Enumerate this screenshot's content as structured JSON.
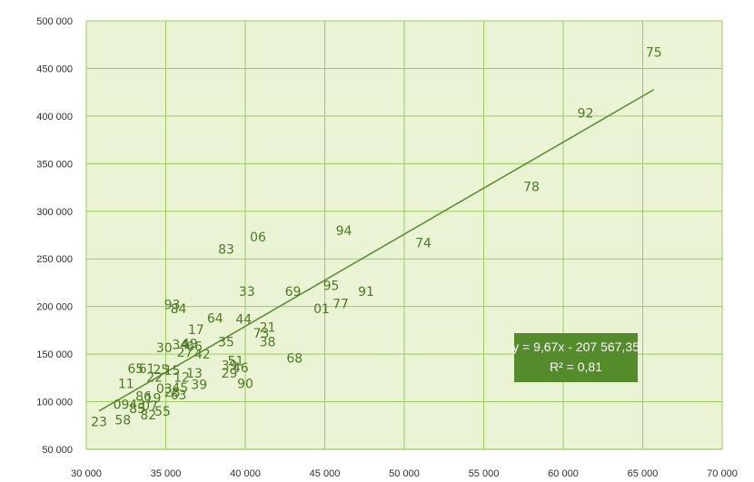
{
  "chart_data": {
    "type": "scatter",
    "title": "",
    "xlabel": "",
    "ylabel": "",
    "xlim": [
      30000,
      70000
    ],
    "ylim": [
      50000,
      500000
    ],
    "x_tick_values": [
      30000,
      35000,
      40000,
      45000,
      50000,
      55000,
      60000,
      65000,
      70000
    ],
    "y_tick_values": [
      50000,
      100000,
      150000,
      200000,
      250000,
      300000,
      350000,
      400000,
      450000,
      500000
    ],
    "x_tick_labels": [
      "30 000",
      "35 000",
      "40 000",
      "45 000",
      "50 000",
      "55 000",
      "60 000",
      "65 000",
      "70 000"
    ],
    "y_tick_labels": [
      "50 000",
      "100 000",
      "150 000",
      "200 000",
      "250 000",
      "300 000",
      "350 000",
      "400 000",
      "450 000",
      "500 000"
    ],
    "grid": true,
    "marker": "text-label",
    "colors": {
      "plot_background": "#eaf4d5",
      "grid": "#9ccc5a",
      "points": "#4d7a22",
      "trendline": "#548b2b",
      "annotation_box": "#548b2b"
    },
    "points": [
      {
        "label": "75",
        "x": 65700,
        "y": 467000
      },
      {
        "label": "92",
        "x": 61400,
        "y": 403000
      },
      {
        "label": "78",
        "x": 58000,
        "y": 326000
      },
      {
        "label": "74",
        "x": 51200,
        "y": 267000
      },
      {
        "label": "94",
        "x": 46200,
        "y": 280000
      },
      {
        "label": "06",
        "x": 40800,
        "y": 273000
      },
      {
        "label": "83",
        "x": 38800,
        "y": 260000
      },
      {
        "label": "95",
        "x": 45400,
        "y": 222000
      },
      {
        "label": "91",
        "x": 47600,
        "y": 216000
      },
      {
        "label": "77",
        "x": 46000,
        "y": 203000
      },
      {
        "label": "01",
        "x": 44800,
        "y": 198000
      },
      {
        "label": "69",
        "x": 43000,
        "y": 216000
      },
      {
        "label": "33",
        "x": 40100,
        "y": 216000
      },
      {
        "label": "93",
        "x": 35400,
        "y": 202000
      },
      {
        "label": "84",
        "x": 35800,
        "y": 198000
      },
      {
        "label": "64",
        "x": 38100,
        "y": 188000
      },
      {
        "label": "44",
        "x": 39900,
        "y": 187000
      },
      {
        "label": "17",
        "x": 36900,
        "y": 176000
      },
      {
        "label": "21",
        "x": 41400,
        "y": 178000
      },
      {
        "label": "73",
        "x": 41000,
        "y": 172000
      },
      {
        "label": "38",
        "x": 41400,
        "y": 163000
      },
      {
        "label": "35",
        "x": 38800,
        "y": 163000
      },
      {
        "label": "68",
        "x": 43100,
        "y": 146000
      },
      {
        "label": "30",
        "x": 34900,
        "y": 157000
      },
      {
        "label": "34",
        "x": 35900,
        "y": 160000
      },
      {
        "label": "49",
        "x": 36500,
        "y": 161000
      },
      {
        "label": "66",
        "x": 36800,
        "y": 158000
      },
      {
        "label": "42",
        "x": 37300,
        "y": 150000
      },
      {
        "label": "27",
        "x": 36200,
        "y": 152000
      },
      {
        "label": "51",
        "x": 39400,
        "y": 143000
      },
      {
        "label": "39",
        "x": 39000,
        "y": 138000
      },
      {
        "label": "46",
        "x": 39700,
        "y": 136000
      },
      {
        "label": "29",
        "x": 39000,
        "y": 130000
      },
      {
        "label": "90",
        "x": 40000,
        "y": 119000
      },
      {
        "label": "65",
        "x": 33100,
        "y": 135000
      },
      {
        "label": "61",
        "x": 33800,
        "y": 135000
      },
      {
        "label": "25",
        "x": 34700,
        "y": 134000
      },
      {
        "label": "22",
        "x": 34300,
        "y": 126000
      },
      {
        "label": "13",
        "x": 36800,
        "y": 130000
      },
      {
        "label": "15",
        "x": 35400,
        "y": 133000
      },
      {
        "label": "12",
        "x": 36000,
        "y": 126000
      },
      {
        "label": "11",
        "x": 32500,
        "y": 119000
      },
      {
        "label": "39",
        "x": 37100,
        "y": 118000
      },
      {
        "label": "45",
        "x": 35900,
        "y": 115000
      },
      {
        "label": "03",
        "x": 34900,
        "y": 114000
      },
      {
        "label": "28",
        "x": 35400,
        "y": 110000
      },
      {
        "label": "63",
        "x": 35800,
        "y": 107000
      },
      {
        "label": "86",
        "x": 33600,
        "y": 106000
      },
      {
        "label": "19",
        "x": 34200,
        "y": 104000
      },
      {
        "label": "09",
        "x": 32200,
        "y": 97000
      },
      {
        "label": "43",
        "x": 33200,
        "y": 97000
      },
      {
        "label": "07",
        "x": 34000,
        "y": 96000
      },
      {
        "label": "55",
        "x": 34800,
        "y": 90000
      },
      {
        "label": "82",
        "x": 33900,
        "y": 86000
      },
      {
        "label": "85",
        "x": 33200,
        "y": 93000
      },
      {
        "label": "58",
        "x": 32300,
        "y": 81000
      },
      {
        "label": "23",
        "x": 30800,
        "y": 79000
      }
    ],
    "trendline": {
      "type": "linear",
      "slope": 9.67,
      "intercept": -207567.35,
      "x_start": 30800,
      "x_end": 65700,
      "equation_text": "y = 9,67x - 207 567,35",
      "r2_text": "R² = 0,81",
      "label_position": "right-center"
    }
  }
}
